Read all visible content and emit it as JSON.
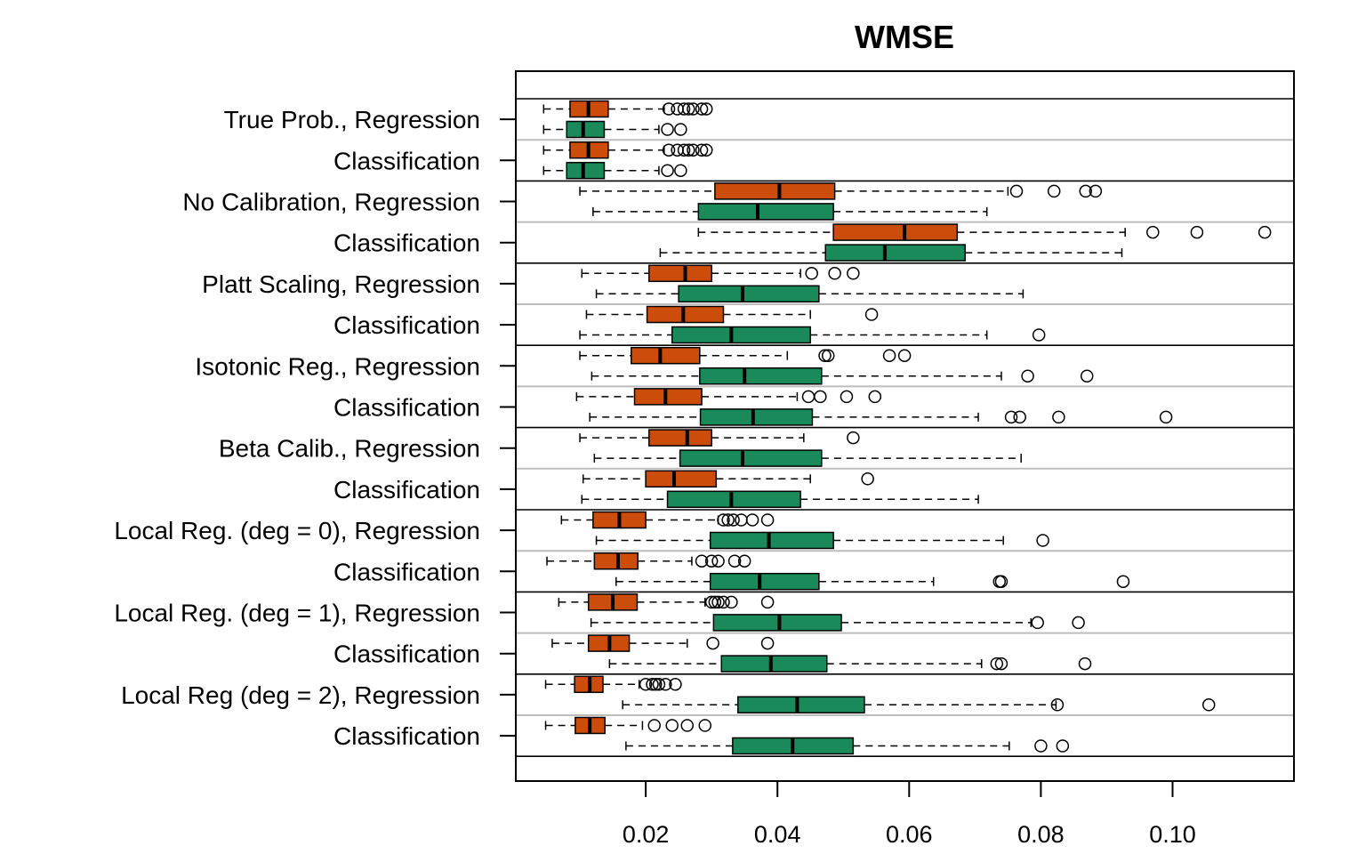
{
  "chart_data": {
    "type": "boxplot",
    "orientation": "horizontal",
    "title": "WMSE",
    "xlabel": "",
    "ylabel": "",
    "xlim": [
      0.0,
      0.115
    ],
    "xticks": [
      0.02,
      0.04,
      0.06,
      0.08,
      0.1
    ],
    "xtick_labels": [
      "0.02",
      "0.04",
      "0.06",
      "0.08",
      "0.10"
    ],
    "grid": false,
    "legend": "none",
    "colors": {
      "orange": "#cc4c0c",
      "green": "#1b8a5a",
      "group_separator": "#000000",
      "pair_separator": "#bdbdbd"
    },
    "rows": [
      {
        "label": "True Prob., Regression",
        "boxes": [
          {
            "color": "orange",
            "wlo": 0.0045,
            "q1": 0.0085,
            "med": 0.0113,
            "q3": 0.0143,
            "whi": 0.0228,
            "out": [
              0.0235,
              0.0248,
              0.0258,
              0.0265,
              0.0272,
              0.0285,
              0.0292
            ]
          },
          {
            "color": "green",
            "wlo": 0.0045,
            "q1": 0.008,
            "med": 0.0105,
            "q3": 0.0137,
            "whi": 0.022,
            "out": [
              0.0233,
              0.0253
            ]
          }
        ]
      },
      {
        "label": "Classification",
        "boxes": [
          {
            "color": "orange",
            "wlo": 0.0045,
            "q1": 0.0085,
            "med": 0.0113,
            "q3": 0.0143,
            "whi": 0.0228,
            "out": [
              0.0235,
              0.0248,
              0.0258,
              0.0265,
              0.0272,
              0.0285,
              0.0292
            ]
          },
          {
            "color": "green",
            "wlo": 0.0045,
            "q1": 0.008,
            "med": 0.0105,
            "q3": 0.0137,
            "whi": 0.022,
            "out": [
              0.0233,
              0.0253
            ]
          }
        ]
      },
      {
        "label": "No Calibration, Regression",
        "boxes": [
          {
            "color": "orange",
            "wlo": 0.01,
            "q1": 0.0305,
            "med": 0.0403,
            "q3": 0.0487,
            "whi": 0.075,
            "out": [
              0.0763,
              0.082,
              0.0868,
              0.0883
            ]
          },
          {
            "color": "green",
            "wlo": 0.012,
            "q1": 0.028,
            "med": 0.037,
            "q3": 0.0485,
            "whi": 0.0718,
            "out": []
          }
        ]
      },
      {
        "label": "Classification",
        "boxes": [
          {
            "color": "orange",
            "wlo": 0.028,
            "q1": 0.0485,
            "med": 0.0593,
            "q3": 0.0673,
            "whi": 0.0928,
            "out": [
              0.097,
              0.1037,
              0.114
            ]
          },
          {
            "color": "green",
            "wlo": 0.0222,
            "q1": 0.0473,
            "med": 0.0563,
            "q3": 0.0685,
            "whi": 0.0923,
            "out": []
          }
        ]
      },
      {
        "label": "Platt Scaling, Regression",
        "boxes": [
          {
            "color": "orange",
            "wlo": 0.0103,
            "q1": 0.0205,
            "med": 0.026,
            "q3": 0.03,
            "whi": 0.0435,
            "out": [
              0.0452,
              0.0487,
              0.0515
            ]
          },
          {
            "color": "green",
            "wlo": 0.0125,
            "q1": 0.025,
            "med": 0.0347,
            "q3": 0.0463,
            "whi": 0.0773,
            "out": []
          }
        ]
      },
      {
        "label": "Classification",
        "boxes": [
          {
            "color": "orange",
            "wlo": 0.011,
            "q1": 0.0202,
            "med": 0.0257,
            "q3": 0.0318,
            "whi": 0.045,
            "out": [
              0.0543
            ]
          },
          {
            "color": "green",
            "wlo": 0.01,
            "q1": 0.024,
            "med": 0.033,
            "q3": 0.045,
            "whi": 0.0718,
            "out": [
              0.0797
            ]
          }
        ]
      },
      {
        "label": "Isotonic Reg., Regression",
        "boxes": [
          {
            "color": "orange",
            "wlo": 0.01,
            "q1": 0.0178,
            "med": 0.0222,
            "q3": 0.0282,
            "whi": 0.0415,
            "out": [
              0.0472,
              0.0477,
              0.057,
              0.0593
            ]
          },
          {
            "color": "green",
            "wlo": 0.0118,
            "q1": 0.0282,
            "med": 0.035,
            "q3": 0.0467,
            "whi": 0.074,
            "out": [
              0.078,
              0.087
            ]
          }
        ]
      },
      {
        "label": "Classification",
        "boxes": [
          {
            "color": "orange",
            "wlo": 0.0095,
            "q1": 0.0183,
            "med": 0.023,
            "q3": 0.0285,
            "whi": 0.043,
            "out": [
              0.0447,
              0.0465,
              0.0505,
              0.0548
            ]
          },
          {
            "color": "green",
            "wlo": 0.0115,
            "q1": 0.0283,
            "med": 0.0363,
            "q3": 0.0453,
            "whi": 0.0705,
            "out": [
              0.0755,
              0.0768,
              0.0827,
              0.099
            ]
          }
        ]
      },
      {
        "label": "Beta Calib., Regression",
        "boxes": [
          {
            "color": "orange",
            "wlo": 0.01,
            "q1": 0.0205,
            "med": 0.0263,
            "q3": 0.03,
            "whi": 0.044,
            "out": [
              0.0515
            ]
          },
          {
            "color": "green",
            "wlo": 0.0122,
            "q1": 0.0252,
            "med": 0.0347,
            "q3": 0.0467,
            "whi": 0.077,
            "out": []
          }
        ]
      },
      {
        "label": "Classification",
        "boxes": [
          {
            "color": "orange",
            "wlo": 0.0105,
            "q1": 0.02,
            "med": 0.0243,
            "q3": 0.0307,
            "whi": 0.045,
            "out": [
              0.0537
            ]
          },
          {
            "color": "green",
            "wlo": 0.0103,
            "q1": 0.0233,
            "med": 0.033,
            "q3": 0.0435,
            "whi": 0.0705,
            "out": []
          }
        ]
      },
      {
        "label": "Local Reg. (deg = 0), Regression",
        "boxes": [
          {
            "color": "orange",
            "wlo": 0.0072,
            "q1": 0.012,
            "med": 0.016,
            "q3": 0.02,
            "whi": 0.031,
            "out": [
              0.0318,
              0.0325,
              0.0333,
              0.0345,
              0.0362,
              0.0385
            ]
          },
          {
            "color": "green",
            "wlo": 0.0125,
            "q1": 0.0298,
            "med": 0.0387,
            "q3": 0.0485,
            "whi": 0.0743,
            "out": [
              0.0803
            ]
          }
        ]
      },
      {
        "label": "Classification",
        "boxes": [
          {
            "color": "orange",
            "wlo": 0.005,
            "q1": 0.0122,
            "med": 0.0158,
            "q3": 0.0188,
            "whi": 0.027,
            "out": [
              0.0285,
              0.03,
              0.031,
              0.0335,
              0.035
            ]
          },
          {
            "color": "green",
            "wlo": 0.0155,
            "q1": 0.0298,
            "med": 0.0373,
            "q3": 0.0463,
            "whi": 0.0637,
            "out": [
              0.0737,
              0.074,
              0.0925
            ]
          }
        ]
      },
      {
        "label": "Local Reg. (deg = 1), Regression",
        "boxes": [
          {
            "color": "orange",
            "wlo": 0.0068,
            "q1": 0.0113,
            "med": 0.015,
            "q3": 0.0187,
            "whi": 0.029,
            "out": [
              0.03,
              0.0305,
              0.031,
              0.0318,
              0.033,
              0.0385
            ]
          },
          {
            "color": "green",
            "wlo": 0.0117,
            "q1": 0.0303,
            "med": 0.0403,
            "q3": 0.0497,
            "whi": 0.0785,
            "out": [
              0.0795,
              0.0857
            ]
          }
        ]
      },
      {
        "label": "Classification",
        "boxes": [
          {
            "color": "orange",
            "wlo": 0.0058,
            "q1": 0.0113,
            "med": 0.0145,
            "q3": 0.0175,
            "whi": 0.0263,
            "out": [
              0.0302,
              0.0385
            ]
          },
          {
            "color": "green",
            "wlo": 0.0145,
            "q1": 0.0315,
            "med": 0.039,
            "q3": 0.0475,
            "whi": 0.071,
            "out": [
              0.0733,
              0.074,
              0.0867
            ]
          }
        ]
      },
      {
        "label": "Local Reg (deg = 2), Regression",
        "boxes": [
          {
            "color": "orange",
            "wlo": 0.0048,
            "q1": 0.0092,
            "med": 0.0115,
            "q3": 0.0135,
            "whi": 0.019,
            "out": [
              0.02,
              0.021,
              0.0215,
              0.022,
              0.023,
              0.0245
            ]
          },
          {
            "color": "green",
            "wlo": 0.0165,
            "q1": 0.034,
            "med": 0.043,
            "q3": 0.0532,
            "whi": 0.0823,
            "out": [
              0.0825,
              0.1055
            ]
          }
        ]
      },
      {
        "label": "Classification",
        "boxes": [
          {
            "color": "orange",
            "wlo": 0.0048,
            "q1": 0.0093,
            "med": 0.0115,
            "q3": 0.0138,
            "whi": 0.0195,
            "out": [
              0.0213,
              0.024,
              0.0263,
              0.029
            ]
          },
          {
            "color": "green",
            "wlo": 0.017,
            "q1": 0.0332,
            "med": 0.0423,
            "q3": 0.0515,
            "whi": 0.0752,
            "out": [
              0.08,
              0.0833
            ]
          }
        ]
      }
    ]
  }
}
